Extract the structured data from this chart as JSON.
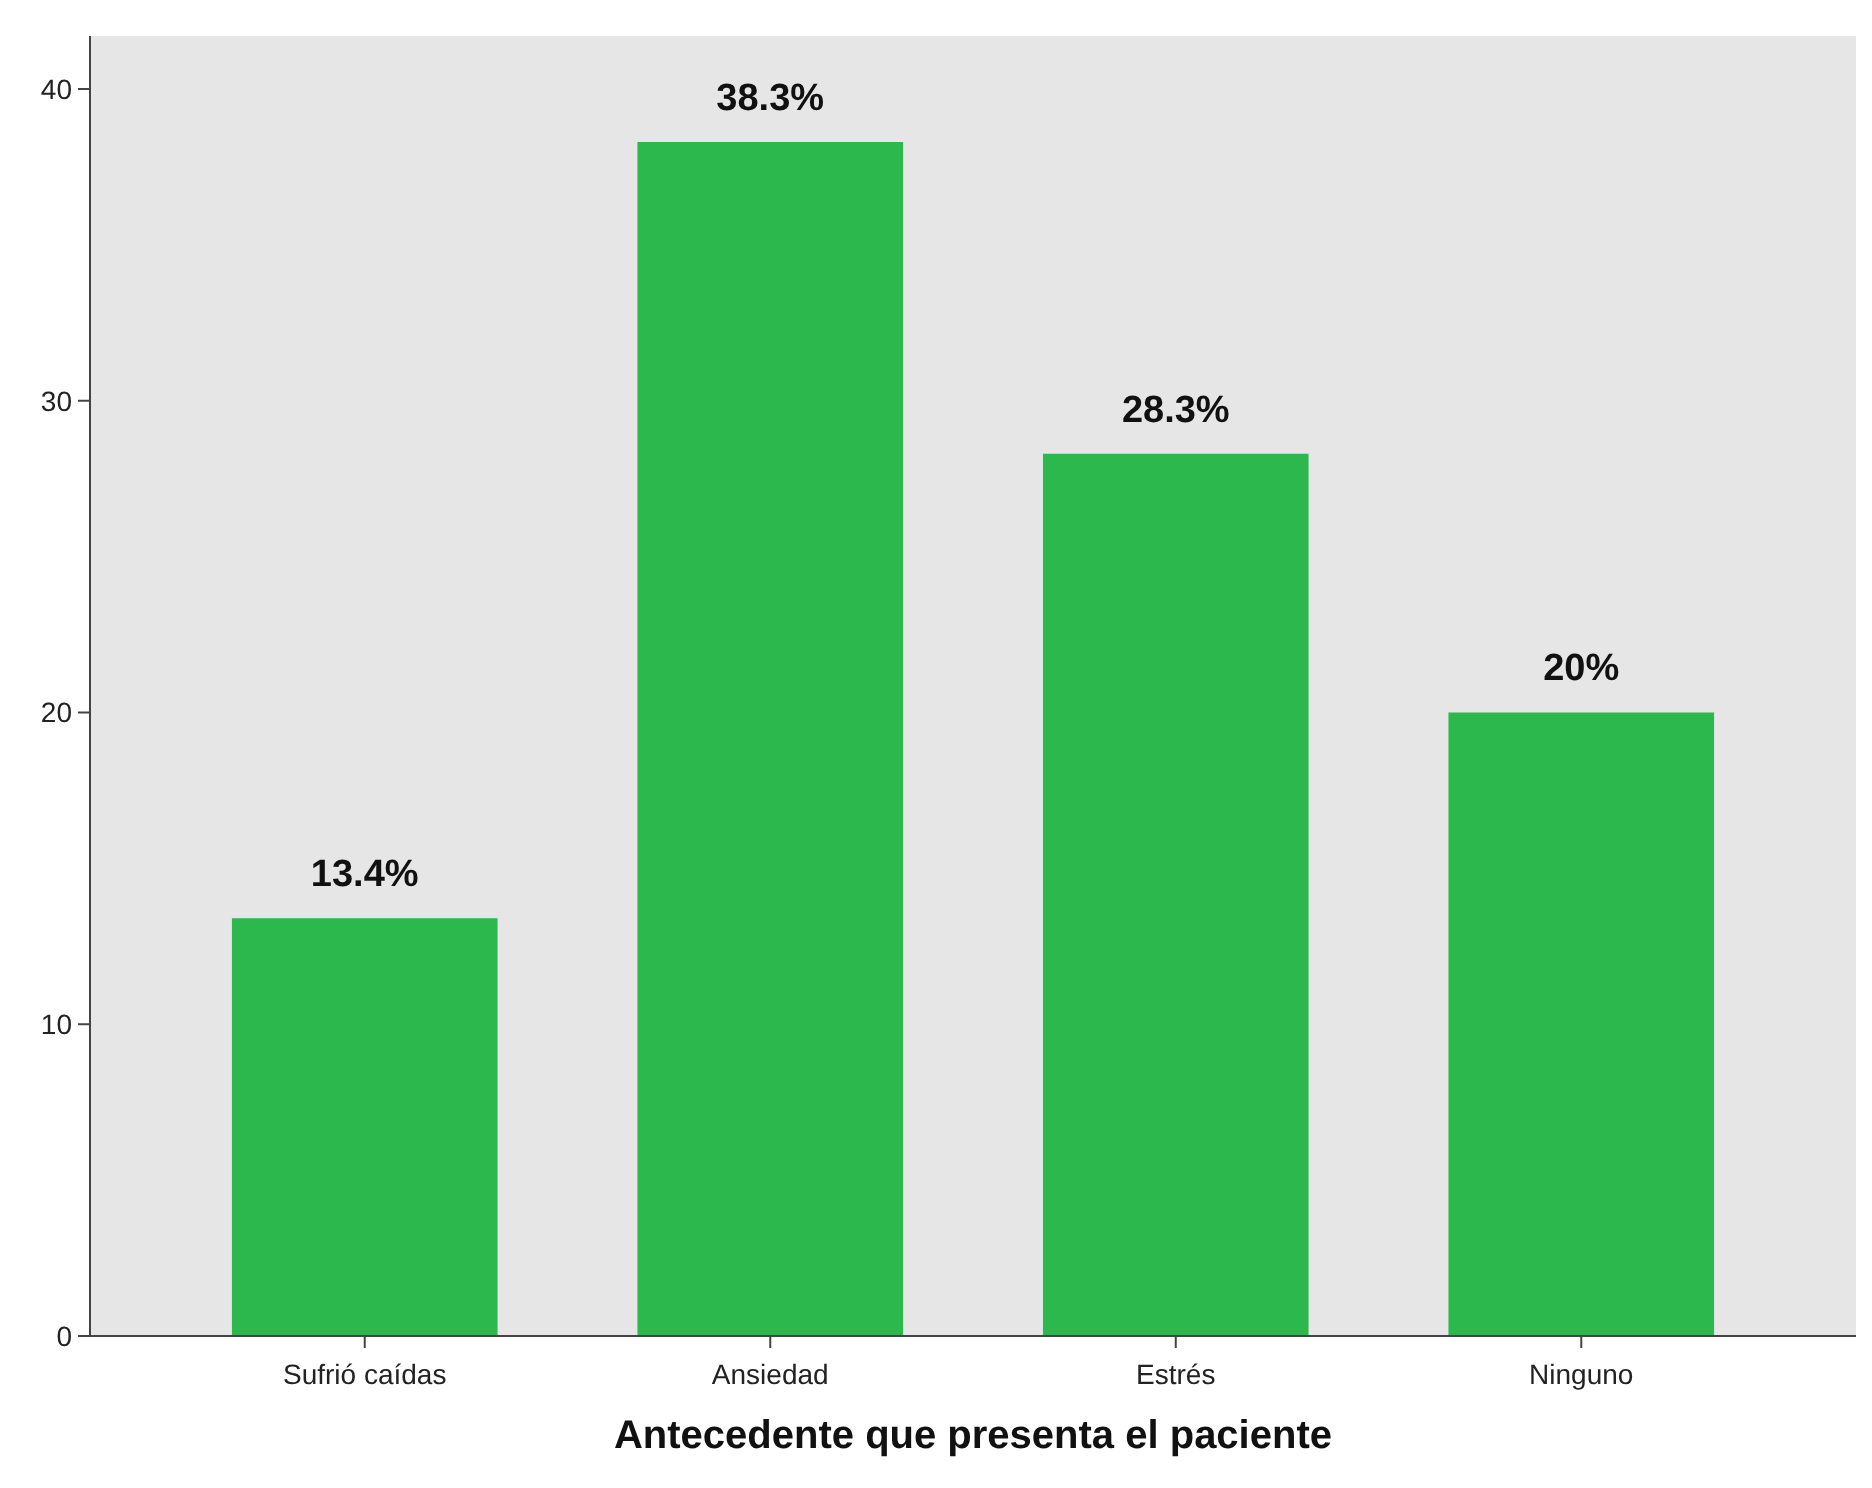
{
  "chart_data": {
    "type": "bar",
    "xlabel": "Antecedente que presenta el paciente",
    "categories": [
      "Sufrió caídas",
      "Ansiedad",
      "Estrés",
      "Ninguno"
    ],
    "values": [
      13.4,
      38.3,
      28.3,
      20
    ],
    "value_labels": [
      "13.4%",
      "38.3%",
      "28.3%",
      "20%"
    ],
    "color": "#2db84d",
    "ylim": [
      0,
      41.7
    ],
    "yticks": [
      0,
      10,
      20,
      30,
      40
    ],
    "grid": false
  }
}
